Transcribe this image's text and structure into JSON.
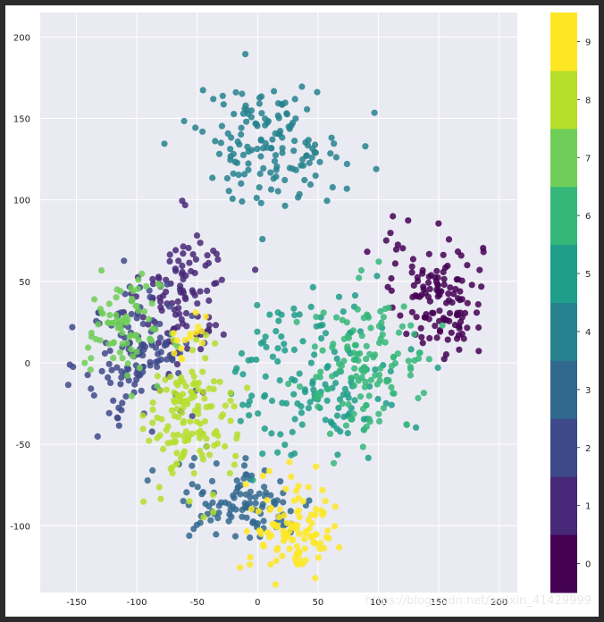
{
  "watermark": "https://blog.csdn.net/weixin_41429999",
  "chart_data": {
    "type": "scatter",
    "title": "",
    "xlabel": "",
    "ylabel": "",
    "xlim": [
      -180,
      215
    ],
    "ylim": [
      -141,
      215
    ],
    "xticks": [
      -150,
      -100,
      -50,
      0,
      50,
      100,
      150,
      200
    ],
    "yticks": [
      -100,
      -50,
      0,
      50,
      100,
      150,
      200
    ],
    "grid": true,
    "background": "#eaeaf2",
    "colorbar": {
      "colormap": "viridis",
      "ticks": [
        0,
        1,
        2,
        3,
        4,
        5,
        6,
        7,
        8,
        9
      ],
      "colors": [
        "#440154",
        "#482878",
        "#3e4989",
        "#31688e",
        "#26828e",
        "#1f9e89",
        "#35b779",
        "#6ece58",
        "#b5de2b",
        "#fde725"
      ]
    },
    "clusters": [
      {
        "label": 0,
        "center": [
          150,
          40
        ],
        "spread": [
          18,
          18
        ],
        "count": 120
      },
      {
        "label": 0,
        "center": [
          115,
          70
        ],
        "spread": [
          10,
          15
        ],
        "count": 10
      },
      {
        "label": 1,
        "center": [
          -60,
          40
        ],
        "spread": [
          18,
          22
        ],
        "count": 110
      },
      {
        "label": 2,
        "center": [
          -100,
          5
        ],
        "spread": [
          22,
          22
        ],
        "count": 130
      },
      {
        "label": 3,
        "center": [
          -10,
          -85
        ],
        "spread": [
          30,
          12
        ],
        "count": 110
      },
      {
        "label": 4,
        "center": [
          10,
          135
        ],
        "spread": [
          30,
          18
        ],
        "count": 150
      },
      {
        "label": 5,
        "center": [
          50,
          -10
        ],
        "spread": [
          35,
          25
        ],
        "count": 150
      },
      {
        "label": 6,
        "center": [
          90,
          0
        ],
        "spread": [
          28,
          22
        ],
        "count": 130
      },
      {
        "label": 7,
        "center": [
          -110,
          20
        ],
        "spread": [
          15,
          15
        ],
        "count": 80
      },
      {
        "label": 8,
        "center": [
          -55,
          -35
        ],
        "spread": [
          18,
          22
        ],
        "count": 140
      },
      {
        "label": 9,
        "center": [
          30,
          -100
        ],
        "spread": [
          18,
          15
        ],
        "count": 110
      },
      {
        "label": 9,
        "center": [
          -55,
          15
        ],
        "spread": [
          8,
          8
        ],
        "count": 15
      }
    ]
  }
}
